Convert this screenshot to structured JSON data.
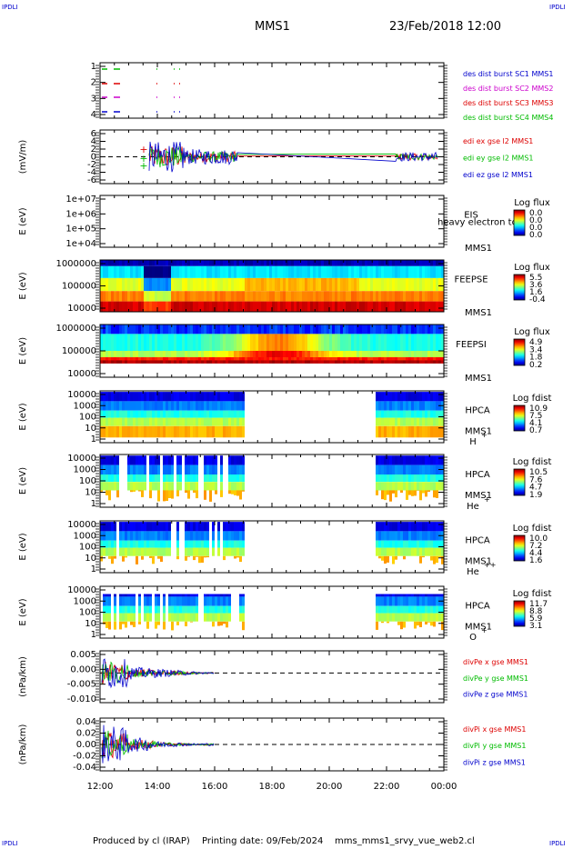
{
  "header": {
    "corner_tl": "IPDLI",
    "corner_tr": "IPDLI",
    "corner_bl": "IPDLI",
    "corner_br": "IPDLI",
    "mission": "MMS1",
    "datetime": "23/Feb/2018 12:00"
  },
  "footer": {
    "produced_by": "Produced by cl (IRAP)",
    "printing_date": "Printing date: 09/Feb/2024",
    "script": "mms_mms1_srvy_vue_web2.cl"
  },
  "colors": {
    "mms1": "#0000cc",
    "mms2": "#cc00cc",
    "mms3": "#dd0000",
    "mms4": "#00bb00"
  },
  "chart_data": {
    "type": "multi-panel",
    "x": {
      "ticks": [
        "12:00",
        "14:00",
        "16:00",
        "18:00",
        "20:00",
        "22:00",
        "00:00"
      ],
      "range_hours": [
        12,
        24
      ]
    },
    "panels": [
      {
        "id": "burst",
        "type": "timeline",
        "yticks": [
          "1",
          "2",
          "3",
          "4"
        ],
        "legend": [
          {
            "text": "des dist burst SC1 MMS1",
            "color": "#0000cc"
          },
          {
            "text": "des dist burst SC2 MMS2",
            "color": "#cc00cc"
          },
          {
            "text": "des dist burst SC3 MMS3",
            "color": "#dd0000"
          },
          {
            "text": "des dist burst SC4 MMS4",
            "color": "#00bb00"
          }
        ]
      },
      {
        "id": "edi",
        "type": "line",
        "ylabel": "(mV/m)",
        "yticks": [
          "6",
          "4",
          "2",
          "0",
          "-2",
          "-4",
          "-6"
        ],
        "ylim": [
          -7,
          7
        ],
        "legend": [
          {
            "text": "edi ex gse l2 MMS1",
            "color": "#dd0000"
          },
          {
            "text": "edi ey gse l2 MMS1",
            "color": "#00bb00"
          },
          {
            "text": "edi ez gse l2 MMS1",
            "color": "#0000cc"
          }
        ]
      },
      {
        "id": "eis",
        "type": "heatmap",
        "ylabel": "E (eV)",
        "yticks": [
          "1e+07",
          "1e+06",
          "1e+05",
          "1e+04"
        ],
        "instrument": "EIS",
        "overflow_text": "heavy electron tof",
        "sc": "MMS1",
        "cbar_title": "Log flux",
        "cbar_ticks": [
          "0.0",
          "0.0",
          "0.0",
          "0.0"
        ]
      },
      {
        "id": "feepse",
        "type": "heatmap",
        "ylabel": "E (eV)",
        "yticks": [
          "1000000",
          "100000",
          "10000"
        ],
        "instrument": "FEEPSE",
        "sc": "MMS1",
        "cbar_title": "Log flux",
        "cbar_ticks": [
          "5.5",
          "3.6",
          "1.6",
          "-0.4"
        ]
      },
      {
        "id": "feepsi",
        "type": "heatmap",
        "ylabel": "E (eV)",
        "yticks": [
          "1000000",
          "100000",
          "10000"
        ],
        "instrument": "FEEPSI",
        "sc": "MMS1",
        "cbar_title": "Log flux",
        "cbar_ticks": [
          "4.9",
          "3.4",
          "1.8",
          "0.2"
        ]
      },
      {
        "id": "hpca_h",
        "type": "heatmap",
        "ylabel": "E (eV)",
        "yticks": [
          "10000",
          "1000",
          "100",
          "10",
          "1"
        ],
        "instrument": "HPCA",
        "sc": "MMS1",
        "species": "H",
        "charge": "+",
        "cbar_title": "Log fdist",
        "cbar_ticks": [
          "10.9",
          "7.5",
          "4.1",
          "0.7"
        ]
      },
      {
        "id": "hpca_he",
        "type": "heatmap",
        "ylabel": "E (eV)",
        "yticks": [
          "10000",
          "1000",
          "100",
          "10",
          "1"
        ],
        "instrument": "HPCA",
        "sc": "MMS1",
        "species": "He",
        "charge": "+",
        "cbar_title": "Log fdist",
        "cbar_ticks": [
          "10.5",
          "7.6",
          "4.7",
          "1.9"
        ]
      },
      {
        "id": "hpca_hepp",
        "type": "heatmap",
        "ylabel": "E (eV)",
        "yticks": [
          "10000",
          "1000",
          "100",
          "10",
          "1"
        ],
        "instrument": "HPCA",
        "sc": "MMS1",
        "species": "He",
        "charge": "++",
        "cbar_title": "Log fdist",
        "cbar_ticks": [
          "10.0",
          "7.2",
          "4.4",
          "1.6"
        ]
      },
      {
        "id": "hpca_o",
        "type": "heatmap",
        "ylabel": "E (eV)",
        "yticks": [
          "10000",
          "1000",
          "100",
          "10",
          "1"
        ],
        "instrument": "HPCA",
        "sc": "MMS1",
        "species": "O",
        "charge": "+",
        "cbar_title": "Log fdist",
        "cbar_ticks": [
          "11.7",
          "8.8",
          "5.9",
          "3.1"
        ]
      },
      {
        "id": "divpe",
        "type": "line",
        "ylabel": "(nPa/km)",
        "yticks": [
          "0.005",
          "0.000",
          "-0.005",
          "-0.010"
        ],
        "ylim": [
          -0.012,
          0.009
        ],
        "legend": [
          {
            "text": "divPe x gse MMS1",
            "color": "#dd0000"
          },
          {
            "text": "divPe y gse MMS1",
            "color": "#00bb00"
          },
          {
            "text": "divPe z gse MMS1",
            "color": "#0000cc"
          }
        ]
      },
      {
        "id": "divpi",
        "type": "line",
        "ylabel": "(nPa/km)",
        "yticks": [
          "0.04",
          "0.02",
          "0.00",
          "-0.02",
          "-0.04"
        ],
        "ylim": [
          -0.05,
          0.05
        ],
        "legend": [
          {
            "text": "divPi x gse MMS1",
            "color": "#dd0000"
          },
          {
            "text": "divPi y gse MMS1",
            "color": "#00bb00"
          },
          {
            "text": "divPi z gse MMS1",
            "color": "#0000cc"
          }
        ]
      }
    ]
  }
}
